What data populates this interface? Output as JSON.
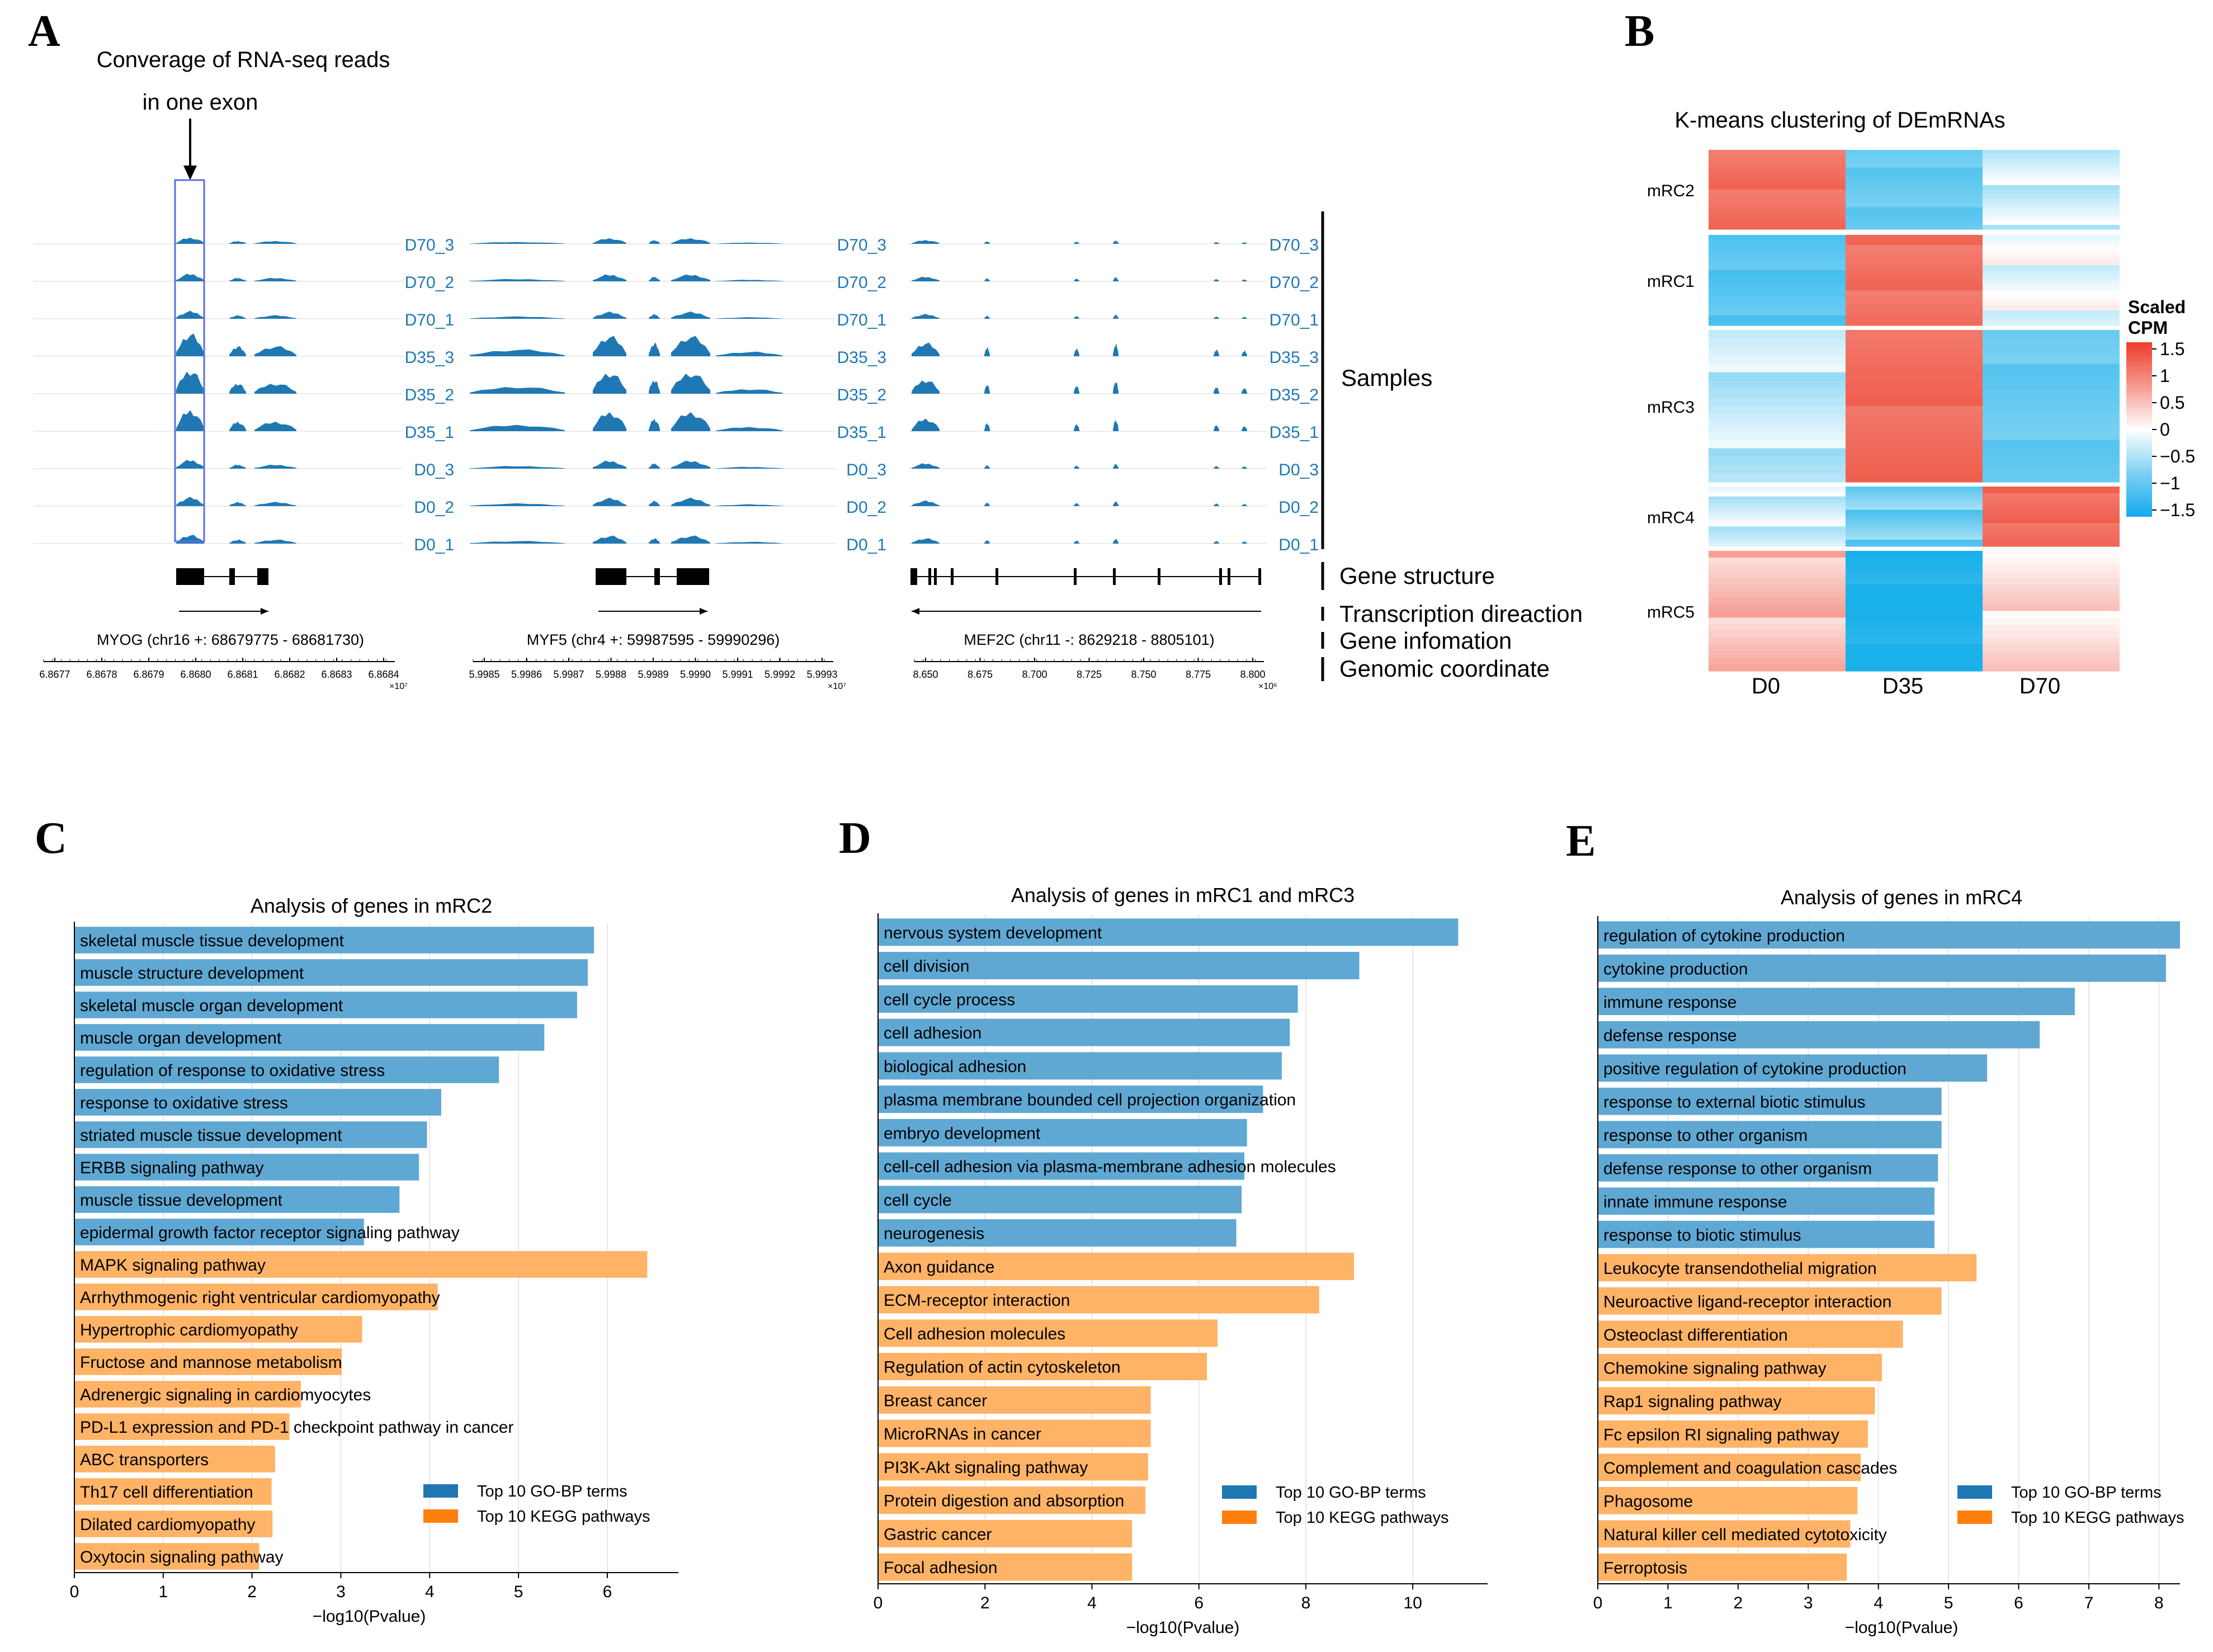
{
  "panel_letters": [
    "A",
    "B",
    "C",
    "D",
    "E"
  ],
  "colors": {
    "track": "#1f78b4",
    "go_bar": "#5fa8d3",
    "kegg_bar": "#ffb366",
    "go_legend": "#1f77b4",
    "kegg_legend": "#ff7f0e",
    "heat_high": "#ef5b4a",
    "heat_low": "#1ab0ea",
    "box": "#5a6ee8",
    "grid": "#e6e6e6"
  },
  "panelA": {
    "annotation_line1": "Converage of RNA-seq reads",
    "annotation_line2": "in one exon",
    "samples": [
      "D70_3",
      "D70_2",
      "D70_1",
      "D35_3",
      "D35_2",
      "D35_1",
      "D0_3",
      "D0_2",
      "D0_1"
    ],
    "right_labels": {
      "samples": "Samples",
      "gene_structure": "Gene structure",
      "transcription": "Transcription direaction",
      "gene_info": "Gene infomation",
      "coordinate": "Genomic coordinate"
    },
    "genes": [
      {
        "name": "MYOG (chr16 +: 68679775 - 68681730)",
        "direction": "right",
        "ticks": [
          "6.8677",
          "6.8678",
          "6.8679",
          "6.8680",
          "6.8681",
          "6.8682",
          "6.8683",
          "6.8684"
        ],
        "exponent": "×10⁷"
      },
      {
        "name": "MYF5 (chr4 +: 59987595 - 59990296)",
        "direction": "right",
        "ticks": [
          "5.9985",
          "5.9986",
          "5.9987",
          "5.9988",
          "5.9989",
          "5.9990",
          "5.9991",
          "5.9992",
          "5.9993"
        ],
        "exponent": "×10⁷"
      },
      {
        "name": "MEF2C (chr11 -: 8629218 - 8805101)",
        "direction": "left",
        "ticks": [
          "8.650",
          "8.675",
          "8.700",
          "8.725",
          "8.750",
          "8.775",
          "8.800"
        ],
        "exponent": "×10⁶"
      }
    ]
  },
  "panelB": {
    "title": "K-means clustering of DEmRNAs",
    "clusters": [
      {
        "name": "mRC2",
        "means": [
          1.3,
          -1.0,
          -0.3
        ]
      },
      {
        "name": "mRC1",
        "means": [
          -1.1,
          1.3,
          -0.1
        ]
      },
      {
        "name": "mRC3",
        "means": [
          -0.4,
          1.35,
          -1.0
        ]
      },
      {
        "name": "mRC4",
        "means": [
          -0.3,
          -0.9,
          1.35
        ]
      },
      {
        "name": "mRC5",
        "means": [
          0.6,
          -1.5,
          0.3
        ]
      }
    ],
    "columns": [
      "D0",
      "D35",
      "D70"
    ],
    "legend_title_line1": "Scaled",
    "legend_title_line2": "CPM",
    "legend_ticks": [
      "1.5",
      "1",
      "0.5",
      "0",
      "−0.5",
      "−1",
      "−1.5"
    ]
  },
  "chart_data": [
    {
      "type": "bar",
      "orientation": "horizontal",
      "title": "Analysis of genes in mRC2",
      "xlabel": "−log10(Pvalue)",
      "xlim": [
        0,
        6.8
      ],
      "xticks": [
        "0",
        "1",
        "2",
        "3",
        "4",
        "5",
        "6"
      ],
      "categories": [
        "skeletal muscle tissue development",
        "muscle structure development",
        "skeletal muscle organ development",
        "muscle organ development",
        "regulation of response to oxidative stress",
        "response to oxidative stress",
        "striated muscle tissue development",
        "ERBB signaling pathway",
        "muscle tissue development",
        "epidermal growth factor receptor signaling pathway",
        "MAPK signaling pathway",
        "Arrhythmogenic right ventricular cardiomyopathy",
        "Hypertrophic cardiomyopathy",
        "Fructose and mannose metabolism",
        "Adrenergic signaling in cardiomyocytes",
        "PD-L1 expression and PD-1 checkpoint pathway in cancer",
        "ABC transporters",
        "Th17 cell differentiation",
        "Dilated cardiomyopathy",
        "Oxytocin signaling pathway"
      ],
      "values": [
        5.85,
        5.78,
        5.66,
        5.29,
        4.78,
        4.13,
        3.97,
        3.88,
        3.66,
        3.26,
        6.45,
        4.09,
        3.24,
        3.01,
        2.55,
        2.42,
        2.26,
        2.22,
        2.23,
        2.08
      ],
      "groups": [
        "go",
        "go",
        "go",
        "go",
        "go",
        "go",
        "go",
        "go",
        "go",
        "go",
        "kegg",
        "kegg",
        "kegg",
        "kegg",
        "kegg",
        "kegg",
        "kegg",
        "kegg",
        "kegg",
        "kegg"
      ],
      "legend": [
        "Top 10 GO-BP terms",
        "Top 10 KEGG pathways"
      ]
    },
    {
      "type": "bar",
      "orientation": "horizontal",
      "title": "Analysis of genes in mRC1 and mRC3",
      "xlabel": "−log10(Pvalue)",
      "xlim": [
        0,
        11.4
      ],
      "xticks": [
        "0",
        "2",
        "4",
        "6",
        "8",
        "10"
      ],
      "categories": [
        "nervous system development",
        "cell division",
        "cell cycle process",
        "cell adhesion",
        "biological adhesion",
        "plasma membrane bounded cell projection organization",
        "embryo development",
        "cell-cell adhesion via plasma-membrane adhesion molecules",
        "cell cycle",
        "neurogenesis",
        "Axon guidance",
        "ECM-receptor interaction",
        "Cell adhesion molecules",
        "Regulation of actin cytoskeleton",
        "Breast cancer",
        "MicroRNAs in cancer",
        "PI3K-Akt signaling pathway",
        "Protein digestion and absorption",
        "Gastric cancer",
        "Focal adhesion"
      ],
      "values": [
        10.85,
        9.0,
        7.85,
        7.7,
        7.55,
        7.2,
        6.9,
        6.85,
        6.8,
        6.7,
        8.9,
        8.25,
        6.35,
        6.15,
        5.1,
        5.1,
        5.05,
        5.0,
        4.75,
        4.75
      ],
      "groups": [
        "go",
        "go",
        "go",
        "go",
        "go",
        "go",
        "go",
        "go",
        "go",
        "go",
        "kegg",
        "kegg",
        "kegg",
        "kegg",
        "kegg",
        "kegg",
        "kegg",
        "kegg",
        "kegg",
        "kegg"
      ],
      "legend": [
        "Top 10 GO-BP terms",
        "Top 10 KEGG pathways"
      ]
    },
    {
      "type": "bar",
      "orientation": "horizontal",
      "title": "Analysis of genes in mRC4",
      "xlabel": "−log10(Pvalue)",
      "xlim": [
        0,
        8.3
      ],
      "xticks": [
        "0",
        "1",
        "2",
        "3",
        "4",
        "5",
        "6",
        "7",
        "8"
      ],
      "categories": [
        "regulation of cytokine production",
        "cytokine production",
        "immune response",
        "defense response",
        "positive regulation of cytokine production",
        "response to external biotic stimulus",
        "response to other organism",
        "defense response to other organism",
        "innate immune response",
        "response to biotic stimulus",
        "Leukocyte transendothelial migration",
        "Neuroactive ligand-receptor interaction",
        "Osteoclast differentiation",
        "Chemokine signaling pathway",
        "Rap1 signaling pathway",
        "Fc epsilon RI signaling pathway",
        "Complement and coagulation cascades",
        "Phagosome",
        "Natural killer cell mediated cytotoxicity",
        "Ferroptosis"
      ],
      "values": [
        8.3,
        8.1,
        6.8,
        6.3,
        5.55,
        4.9,
        4.9,
        4.85,
        4.8,
        4.8,
        5.4,
        4.9,
        4.35,
        4.05,
        3.95,
        3.85,
        3.75,
        3.7,
        3.6,
        3.55
      ],
      "groups": [
        "go",
        "go",
        "go",
        "go",
        "go",
        "go",
        "go",
        "go",
        "go",
        "go",
        "kegg",
        "kegg",
        "kegg",
        "kegg",
        "kegg",
        "kegg",
        "kegg",
        "kegg",
        "kegg",
        "kegg"
      ],
      "legend": [
        "Top 10 GO-BP terms",
        "Top 10 KEGG pathways"
      ]
    }
  ]
}
